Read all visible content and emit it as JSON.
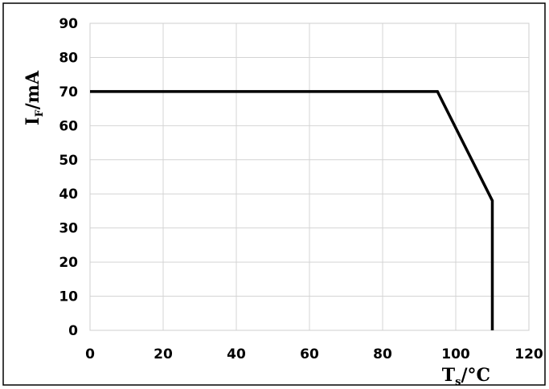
{
  "chart_data": {
    "type": "line",
    "title": "",
    "xlabel": {
      "main": "T",
      "sub": "s",
      "unit": "/°C"
    },
    "ylabel": {
      "main": "I",
      "sub": "F",
      "unit": "/mA"
    },
    "xlim": [
      0,
      120
    ],
    "ylim": [
      0,
      90
    ],
    "xticks": [
      0,
      20,
      40,
      60,
      80,
      100,
      120
    ],
    "yticks": [
      0,
      10,
      20,
      30,
      40,
      50,
      60,
      70,
      80,
      90
    ],
    "grid": true,
    "legend": "none",
    "series": [
      {
        "x": [
          0,
          95,
          110,
          110
        ],
        "y": [
          70,
          70,
          38,
          0
        ],
        "color": "#000000"
      }
    ]
  }
}
